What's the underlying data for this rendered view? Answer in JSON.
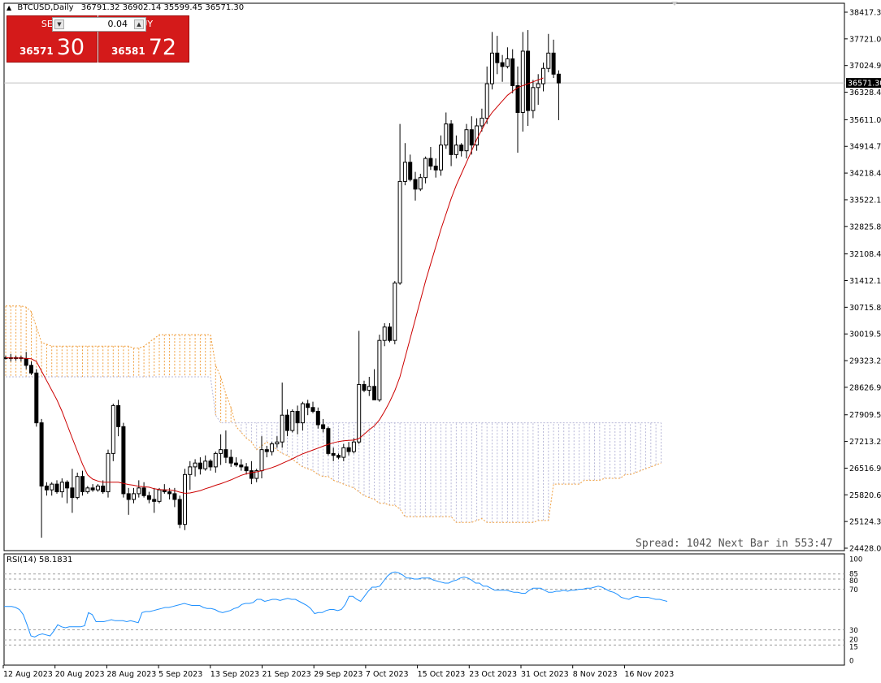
{
  "header": {
    "symbol": "BTCUSD,Daily",
    "ohlc": "36791.32 36902.14 35599.45 36571.30"
  },
  "trade_panel": {
    "sell_label": "SELL",
    "buy_label": "BUY",
    "lot": "0.04",
    "sell_price_small": "36571",
    "sell_price_big": "30",
    "buy_price_small": "36581",
    "buy_price_big": "72"
  },
  "spread_text": "Spread: 1042 Next Bar in 553:47",
  "rsi_label": "RSI(14) 58.1831",
  "current_price_label": "36571.30",
  "colors": {
    "up": "#000000",
    "down": "#000000",
    "ma": "#cc0000",
    "rsi": "#1e90ff",
    "cloud_bull": "#f0a040",
    "cloud_bear": "#b8b8d8",
    "sell": "#d41a1a",
    "buy": "#d41a1a"
  },
  "chart_data": {
    "type": "candlestick",
    "symbol": "BTCUSD",
    "timeframe": "Daily",
    "ylim": [
      24428.0,
      38417.3
    ],
    "yticks": [
      "38417.30",
      "37721.00",
      "37024.90",
      "36328.40",
      "35611.00",
      "34914.70",
      "34218.40",
      "33522.10",
      "32825.80",
      "32108.40",
      "31412.10",
      "30715.80",
      "30019.50",
      "29323.20",
      "28626.90",
      "27909.50",
      "27213.20",
      "26516.90",
      "25820.60",
      "25124.30",
      "24428.00"
    ],
    "current_price": 36571.3,
    "x_labels": [
      "12 Aug 2023",
      "20 Aug 2023",
      "28 Aug 2023",
      "5 Sep 2023",
      "13 Sep 2023",
      "21 Sep 2023",
      "29 Sep 2023",
      "7 Oct 2023",
      "15 Oct 2023",
      "23 Oct 2023",
      "31 Oct 2023",
      "8 Nov 2023",
      "16 Nov 2023"
    ],
    "candles_ohlc": [
      [
        29400,
        29450,
        29350,
        29400
      ],
      [
        29400,
        29500,
        29300,
        29380
      ],
      [
        29380,
        29450,
        29320,
        29400
      ],
      [
        29400,
        29450,
        29300,
        29380
      ],
      [
        29380,
        29550,
        29100,
        29200
      ],
      [
        29200,
        29300,
        28950,
        29000
      ],
      [
        29000,
        29100,
        27600,
        27700
      ],
      [
        27700,
        27800,
        24700,
        26050
      ],
      [
        26050,
        26150,
        25800,
        25950
      ],
      [
        25950,
        26150,
        25800,
        26100
      ],
      [
        26100,
        26200,
        25850,
        25900
      ],
      [
        25900,
        26250,
        25750,
        26150
      ],
      [
        26150,
        26200,
        25600,
        26000
      ],
      [
        26000,
        26500,
        25350,
        25750
      ],
      [
        25750,
        26400,
        25700,
        26300
      ],
      [
        26300,
        26450,
        25800,
        25900
      ],
      [
        25900,
        26050,
        25850,
        26000
      ],
      [
        26000,
        26100,
        25900,
        25950
      ],
      [
        25950,
        26100,
        25900,
        26050
      ],
      [
        26050,
        26200,
        25850,
        25900
      ],
      [
        25900,
        27000,
        25750,
        26900
      ],
      [
        26900,
        28200,
        26700,
        28150
      ],
      [
        28150,
        28300,
        27350,
        27600
      ],
      [
        27600,
        27700,
        25750,
        25850
      ],
      [
        25850,
        26000,
        25300,
        25700
      ],
      [
        25700,
        26000,
        25600,
        25850
      ],
      [
        25850,
        26200,
        25750,
        26000
      ],
      [
        26000,
        26150,
        25750,
        25800
      ],
      [
        25800,
        25900,
        25600,
        25700
      ],
      [
        25700,
        26000,
        25350,
        25650
      ],
      [
        25650,
        26000,
        25600,
        25950
      ],
      [
        25950,
        26100,
        25850,
        25900
      ],
      [
        25900,
        26000,
        25700,
        25850
      ],
      [
        25850,
        26000,
        25500,
        25700
      ],
      [
        25700,
        25800,
        24950,
        25050
      ],
      [
        25050,
        26500,
        24900,
        26350
      ],
      [
        26350,
        26700,
        25950,
        26550
      ],
      [
        26550,
        26750,
        26300,
        26650
      ],
      [
        26650,
        26800,
        26350,
        26500
      ],
      [
        26500,
        26850,
        26450,
        26700
      ],
      [
        26700,
        26750,
        26450,
        26550
      ],
      [
        26550,
        26950,
        26400,
        26900
      ],
      [
        26900,
        27400,
        26600,
        27000
      ],
      [
        27000,
        27500,
        26650,
        26800
      ],
      [
        26800,
        27000,
        26550,
        26650
      ],
      [
        26650,
        26800,
        26550,
        26600
      ],
      [
        26600,
        26750,
        26450,
        26550
      ],
      [
        26550,
        26650,
        26350,
        26450
      ],
      [
        26450,
        26700,
        26100,
        26250
      ],
      [
        26250,
        26500,
        26150,
        26450
      ],
      [
        26450,
        27350,
        26250,
        27000
      ],
      [
        27000,
        27100,
        26800,
        26950
      ],
      [
        26950,
        27200,
        26850,
        27150
      ],
      [
        27150,
        27350,
        27050,
        27200
      ],
      [
        27200,
        28750,
        27050,
        27900
      ],
      [
        27900,
        28050,
        27350,
        27500
      ],
      [
        27500,
        28050,
        27450,
        28000
      ],
      [
        28000,
        28150,
        27400,
        27700
      ],
      [
        27700,
        28250,
        27500,
        28200
      ],
      [
        28200,
        28300,
        27900,
        28100
      ],
      [
        28100,
        28250,
        27950,
        28000
      ],
      [
        28000,
        28100,
        27550,
        27650
      ],
      [
        27650,
        27800,
        27450,
        27550
      ],
      [
        27550,
        27600,
        26850,
        26900
      ],
      [
        26900,
        27050,
        26700,
        26850
      ],
      [
        26850,
        26900,
        26750,
        26800
      ],
      [
        26800,
        27150,
        26700,
        27050
      ],
      [
        27050,
        27200,
        26850,
        26950
      ],
      [
        26950,
        27300,
        26900,
        27200
      ],
      [
        27200,
        30100,
        27150,
        28700
      ],
      [
        28700,
        28800,
        28500,
        28550
      ],
      [
        28550,
        28900,
        28400,
        28650
      ],
      [
        28650,
        29100,
        28300,
        28300
      ],
      [
        28300,
        30000,
        28250,
        29850
      ],
      [
        29850,
        30300,
        29700,
        30200
      ],
      [
        30200,
        30300,
        29800,
        29850
      ],
      [
        29850,
        31400,
        29750,
        31350
      ],
      [
        31350,
        35500,
        31300,
        34000
      ],
      [
        34000,
        35000,
        33900,
        34500
      ],
      [
        34500,
        34700,
        34000,
        34050
      ],
      [
        34050,
        34250,
        33500,
        33800
      ],
      [
        33800,
        34200,
        33750,
        34100
      ],
      [
        34100,
        34650,
        33950,
        34600
      ],
      [
        34600,
        34900,
        34300,
        34400
      ],
      [
        34400,
        34600,
        34100,
        34300
      ],
      [
        34300,
        35200,
        34150,
        34950
      ],
      [
        34950,
        35800,
        34850,
        35500
      ],
      [
        35500,
        35600,
        34400,
        34700
      ],
      [
        34700,
        35200,
        34600,
        34950
      ],
      [
        34950,
        35000,
        34650,
        34800
      ],
      [
        34800,
        35500,
        34600,
        35350
      ],
      [
        35350,
        35700,
        34700,
        34950
      ],
      [
        34950,
        35650,
        34800,
        35450
      ],
      [
        35450,
        35900,
        35300,
        35650
      ],
      [
        35650,
        37000,
        35500,
        36550
      ],
      [
        36550,
        37900,
        36400,
        37350
      ],
      [
        37350,
        37800,
        36800,
        37100
      ],
      [
        37100,
        37300,
        36600,
        37000
      ],
      [
        37000,
        37500,
        36950,
        37200
      ],
      [
        37200,
        37450,
        36300,
        36500
      ],
      [
        36500,
        37000,
        34750,
        35800
      ],
      [
        35800,
        37900,
        35300,
        37400
      ],
      [
        37400,
        37950,
        35450,
        35850
      ],
      [
        35850,
        36650,
        35650,
        36450
      ],
      [
        36450,
        36800,
        36000,
        36550
      ],
      [
        36550,
        37100,
        36350,
        36950
      ],
      [
        36950,
        37850,
        36850,
        37350
      ],
      [
        37350,
        37700,
        36700,
        36800
      ],
      [
        36800,
        36900,
        35600,
        36571
      ]
    ],
    "moving_average": [
      29400,
      29390,
      29390,
      29390,
      29380,
      29370,
      29300,
      29050,
      28800,
      28550,
      28300,
      28000,
      27650,
      27300,
      26960,
      26620,
      26340,
      26230,
      26180,
      26150,
      26150,
      26150,
      26150,
      26120,
      26090,
      26070,
      26040,
      26030,
      26020,
      25980,
      25960,
      25950,
      25950,
      25930,
      25890,
      25860,
      25870,
      25900,
      25930,
      25980,
      26020,
      26070,
      26110,
      26160,
      26210,
      26270,
      26330,
      26370,
      26400,
      26420,
      26450,
      26490,
      26530,
      26580,
      26640,
      26700,
      26760,
      26830,
      26890,
      26940,
      26990,
      27040,
      27090,
      27140,
      27180,
      27210,
      27230,
      27240,
      27250,
      27290,
      27400,
      27520,
      27620,
      27780,
      28000,
      28250,
      28540,
      28900,
      29400,
      29900,
      30400,
      30900,
      31400,
      31850,
      32300,
      32750,
      33150,
      33550,
      33900,
      34200,
      34500,
      34800,
      35100,
      35350,
      35600,
      35800,
      35950,
      36100,
      36250,
      36350,
      36450,
      36500,
      36550,
      36600,
      36650,
      36700
    ],
    "ichimoku_cloud": {
      "span_a": [
        30750,
        30750,
        30750,
        30750,
        30720,
        30600,
        30200,
        29800,
        29750,
        29700,
        29700,
        29700,
        29700,
        29700,
        29700,
        29700,
        29700,
        29700,
        29700,
        29700,
        29700,
        29700,
        29700,
        29700,
        29700,
        29650,
        29650,
        29700,
        29800,
        29900,
        30000,
        30000,
        30000,
        30000,
        30000,
        30000,
        30000,
        30000,
        30000,
        30000,
        30000,
        29200,
        28900,
        28450,
        28100,
        27600,
        27450,
        27300,
        27200,
        27000,
        27100,
        27200,
        27100,
        27000,
        26900,
        26850,
        26750,
        26650,
        26550,
        26500,
        26450,
        26350,
        26300,
        26300,
        26200,
        26150,
        26100,
        26050,
        26000,
        25900,
        25800,
        25750,
        25700,
        25600,
        25600,
        25550,
        25550,
        25450,
        25250,
        25250,
        25250,
        25250,
        25250,
        25250,
        25250,
        25250,
        25250,
        25250,
        25100,
        25100,
        25100,
        25100,
        25150,
        25200,
        25100,
        25100,
        25100,
        25100,
        25100,
        25100,
        25100,
        25100,
        25100,
        25100,
        25150,
        25150,
        25150,
        26100,
        26100,
        26100,
        26100,
        26100,
        26100,
        26200,
        26200,
        26200,
        26200,
        26250,
        26250,
        26250,
        26250,
        26350,
        26350,
        26400,
        26450,
        26500,
        26550,
        26600,
        26650
      ],
      "span_b": [
        28900,
        28900,
        28900,
        28900,
        28900,
        28900,
        28900,
        28900,
        28900,
        28900,
        28900,
        28900,
        28900,
        28900,
        28900,
        28900,
        28900,
        28900,
        28900,
        28900,
        28900,
        28900,
        28900,
        28900,
        28900,
        28900,
        28900,
        28900,
        28900,
        28900,
        28900,
        28900,
        28900,
        28900,
        28900,
        28900,
        28900,
        28900,
        28900,
        28900,
        28900,
        27900,
        27700,
        27700,
        27700,
        27700,
        27700,
        27700,
        27700,
        27700,
        27700,
        27700,
        27700,
        27700,
        27700,
        27700,
        27700,
        27700,
        27700,
        27700,
        27700,
        27700,
        27700,
        27700,
        27700,
        27700,
        27700,
        27700,
        27700,
        27700,
        27700,
        27700,
        27700,
        27700,
        27700,
        27700,
        27700,
        27700,
        27700,
        27700,
        27700,
        27700,
        27700,
        27700,
        27700,
        27700,
        27700,
        27700,
        27700,
        27700,
        27700,
        27700,
        27700,
        27700,
        27700,
        27700,
        27700,
        27700,
        27700,
        27700,
        27700,
        27700,
        27700,
        27700,
        27700,
        27700,
        27700,
        27700,
        27700,
        27700,
        27700,
        27700,
        27700,
        27700,
        27700,
        27700,
        27700,
        27700,
        27700,
        27700,
        27700,
        27700,
        27700,
        27700,
        27700,
        27700,
        27700,
        27700,
        27700
      ]
    },
    "rsi": {
      "label": "RSI(14)",
      "value": 58.1831,
      "levels": [
        85,
        80,
        70,
        30,
        20,
        15
      ],
      "ylim": [
        0,
        100
      ],
      "yticks": [
        "100",
        "85",
        "80",
        "70",
        "30",
        "20",
        "15",
        "0"
      ],
      "values": [
        53,
        53,
        53,
        52,
        50,
        45,
        35,
        24,
        23,
        25,
        26,
        25,
        24,
        29,
        35,
        33,
        32,
        33,
        33,
        33,
        33,
        34,
        47,
        45,
        38,
        38,
        38,
        39,
        40,
        39,
        39,
        39,
        38,
        39,
        38,
        37,
        47,
        48,
        48,
        49,
        50,
        51,
        52,
        52,
        53,
        54,
        55,
        56,
        55,
        54,
        54,
        54,
        52,
        51,
        51,
        50,
        48,
        47,
        48,
        49,
        51,
        52,
        55,
        56,
        56,
        57,
        60,
        60,
        58,
        59,
        60,
        60,
        59,
        60,
        61,
        60,
        60,
        58,
        56,
        54,
        51,
        46,
        47,
        47,
        49,
        50,
        50,
        49,
        50,
        55,
        63,
        63,
        60,
        58,
        63,
        68,
        72,
        72,
        73,
        78,
        83,
        86,
        87,
        86,
        84,
        81,
        81,
        80,
        80,
        81,
        81,
        81,
        79,
        78,
        77,
        76,
        76,
        78,
        79,
        81,
        82,
        81,
        79,
        76,
        76,
        73,
        73,
        71,
        69,
        69,
        69,
        69,
        68,
        67,
        67,
        66,
        66,
        69,
        71,
        71,
        71,
        69,
        67,
        67,
        68,
        68,
        69,
        68,
        69,
        69,
        70,
        70,
        71,
        71,
        72,
        73,
        72,
        70,
        68,
        67,
        65,
        62,
        61,
        60,
        62,
        63,
        62,
        62,
        62,
        61,
        60,
        60,
        59,
        58
      ]
    }
  }
}
